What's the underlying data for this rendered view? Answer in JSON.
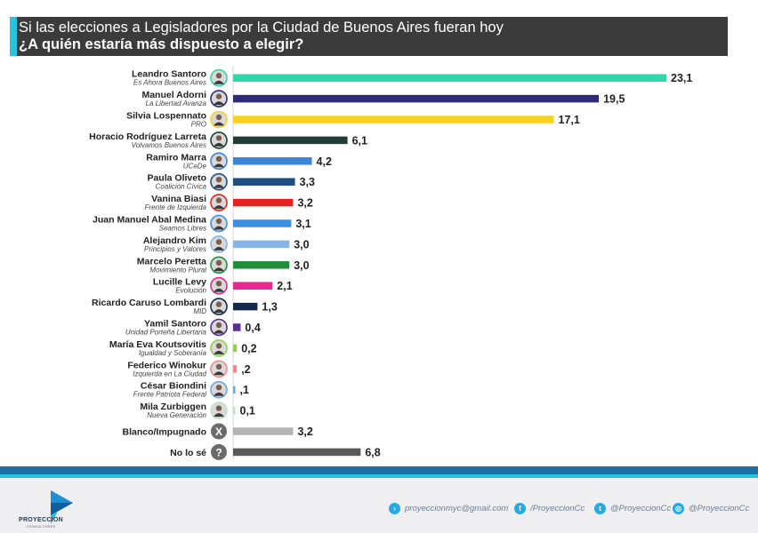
{
  "header": {
    "line1": "Si las elecciones a Legisladores por la Ciudad de Buenos Aires fueran hoy",
    "line2": "¿A quién estaría más dispuesto a elegir?"
  },
  "chart_data": {
    "type": "bar",
    "orientation": "horizontal",
    "title": "Si las elecciones a Legisladores por la Ciudad de Buenos Aires fueran hoy ¿A quién estaría más dispuesto a elegir?",
    "xlim": [
      0,
      23.1
    ],
    "grid": false,
    "categories": [
      {
        "name": "Leandro Santoro",
        "party": "Es Ahora Buenos Aires",
        "value": 23.1,
        "label": "23,1",
        "color": "#2fd6a8",
        "icon": "candidate-photo"
      },
      {
        "name": "Manuel Adorni",
        "party": "La Libertad Avanza",
        "value": 19.5,
        "label": "19,5",
        "color": "#2f2a7a",
        "icon": "candidate-photo"
      },
      {
        "name": "Silvia Lospennato",
        "party": "PRO",
        "value": 17.1,
        "label": "17,1",
        "color": "#f7d21e",
        "icon": "candidate-photo"
      },
      {
        "name": "Horacio Rodríguez Larreta",
        "party": "Volvamos Buenos Aires",
        "value": 6.1,
        "label": "6,1",
        "color": "#1e3e36",
        "icon": "candidate-photo"
      },
      {
        "name": "Ramiro Marra",
        "party": "UCeDe",
        "value": 4.2,
        "label": "4,2",
        "color": "#3a86d4",
        "icon": "candidate-photo"
      },
      {
        "name": "Paula Oliveto",
        "party": "Coalición Cívica",
        "value": 3.3,
        "label": "3,3",
        "color": "#1d4f85",
        "icon": "candidate-photo"
      },
      {
        "name": "Vanina Biasi",
        "party": "Frente de Izquierda",
        "value": 3.2,
        "label": "3,2",
        "color": "#e52421",
        "icon": "candidate-photo"
      },
      {
        "name": "Juan Manuel Abal Medina",
        "party": "Seamos Libres",
        "value": 3.1,
        "label": "3,1",
        "color": "#3d8fe0",
        "icon": "candidate-photo"
      },
      {
        "name": "Alejandro Kim",
        "party": "Principios y Valores",
        "value": 3.0,
        "label": "3,0",
        "color": "#86b4e6",
        "icon": "candidate-photo"
      },
      {
        "name": "Marcelo Peretta",
        "party": "Movimiento Plural",
        "value": 3.0,
        "label": "3,0",
        "color": "#1f8f3c",
        "icon": "candidate-photo"
      },
      {
        "name": "Lucille Levy",
        "party": "Evolución",
        "value": 2.1,
        "label": "2,1",
        "color": "#e6288f",
        "icon": "candidate-photo"
      },
      {
        "name": "Ricardo Caruso Lombardi",
        "party": "MID",
        "value": 1.3,
        "label": "1,3",
        "color": "#13294b",
        "icon": "candidate-photo"
      },
      {
        "name": "Yamil Santoro",
        "party": "Unidad Porteña Libertaria",
        "value": 0.4,
        "label": "0,4",
        "color": "#5b2d90",
        "icon": "candidate-photo"
      },
      {
        "name": "María Eva Koutsovitis",
        "party": "Igualdad y Soberanía",
        "value": 0.2,
        "label": "0,2",
        "color": "#8fd14f",
        "icon": "candidate-photo"
      },
      {
        "name": "Federico Winokur",
        "party": "Izquierda en La Ciudad",
        "value": 0.2,
        "label": ",2",
        "color": "#f08a8a",
        "icon": "candidate-photo"
      },
      {
        "name": "César Biondini",
        "party": "Frente Patriota Federal",
        "value": 0.1,
        "label": ",1",
        "color": "#6ea8d8",
        "icon": "candidate-photo"
      },
      {
        "name": "Mila Zurbiggen",
        "party": "Nueva Generación",
        "value": 0.1,
        "label": "0,1",
        "color": "#bfe3c6",
        "icon": "candidate-photo"
      },
      {
        "name": "Blanco/Impugnado",
        "party": "",
        "value": 3.2,
        "label": "3,2",
        "color": "#b3b3b3",
        "icon": "x-icon",
        "glyph": "X"
      },
      {
        "name": "No lo sé",
        "party": "",
        "value": 6.8,
        "label": "6,8",
        "color": "#5a5a5a",
        "icon": "question-icon",
        "glyph": "?"
      }
    ]
  },
  "footer": {
    "brand_name": "PROYECCION",
    "brand_sub": "CONSULTORES",
    "contacts": [
      {
        "icon": "email-icon",
        "glyph": "›",
        "text": "proyeccionmyc@gmail.com"
      },
      {
        "icon": "facebook-icon",
        "glyph": "f",
        "text": "/ProyeccionCc"
      },
      {
        "icon": "twitter-icon",
        "glyph": "t",
        "text": "@ProyeccionCc"
      },
      {
        "icon": "instagram-icon",
        "glyph": "◎",
        "text": "@ProyeccionCc"
      }
    ]
  }
}
